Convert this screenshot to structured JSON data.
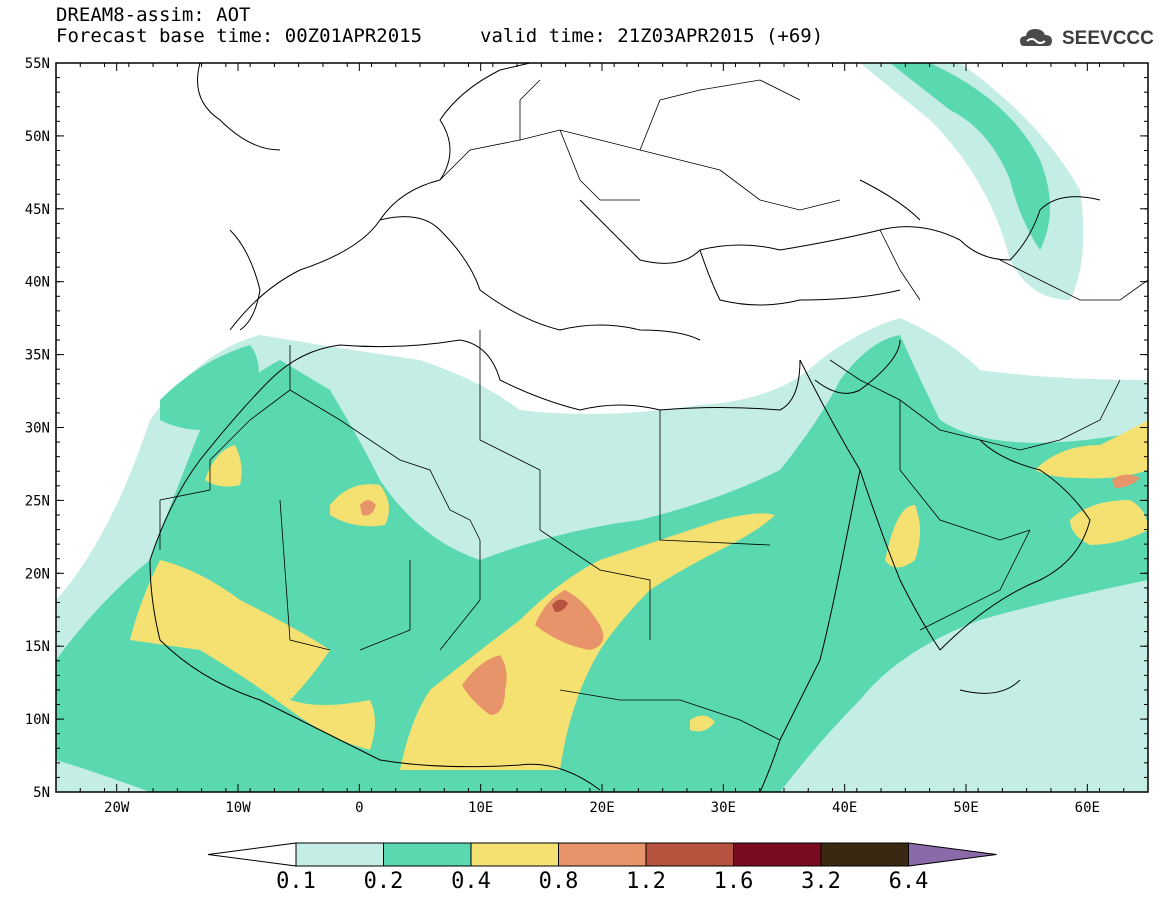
{
  "header": {
    "title_line1": "DREAM8-assim: AOT",
    "title_line2": "Forecast base time: 00Z01APR2015",
    "valid_time": "valid time: 21Z03APR2015 (+69)",
    "logo_text": "SEEVCCC"
  },
  "map": {
    "lat_labels": [
      "55N",
      "50N",
      "45N",
      "40N",
      "35N",
      "30N",
      "25N",
      "20N",
      "15N",
      "10N",
      "5N"
    ],
    "lon_labels": [
      "20W",
      "10W",
      "0",
      "10E",
      "20E",
      "30E",
      "40E",
      "50E",
      "60E"
    ],
    "extent": {
      "lon_min": -25,
      "lon_max": 65,
      "lat_min": 5,
      "lat_max": 55
    }
  },
  "colorbar": {
    "levels": [
      "0.1",
      "0.2",
      "0.4",
      "0.8",
      "1.2",
      "1.6",
      "3.2",
      "6.4"
    ],
    "colors": [
      "#ffffff",
      "#c4ede6",
      "#5ad8b0",
      "#f5e172",
      "#e8946a",
      "#b5533e",
      "#7a0b20",
      "#3a2812",
      "#8a6aa8"
    ]
  }
}
